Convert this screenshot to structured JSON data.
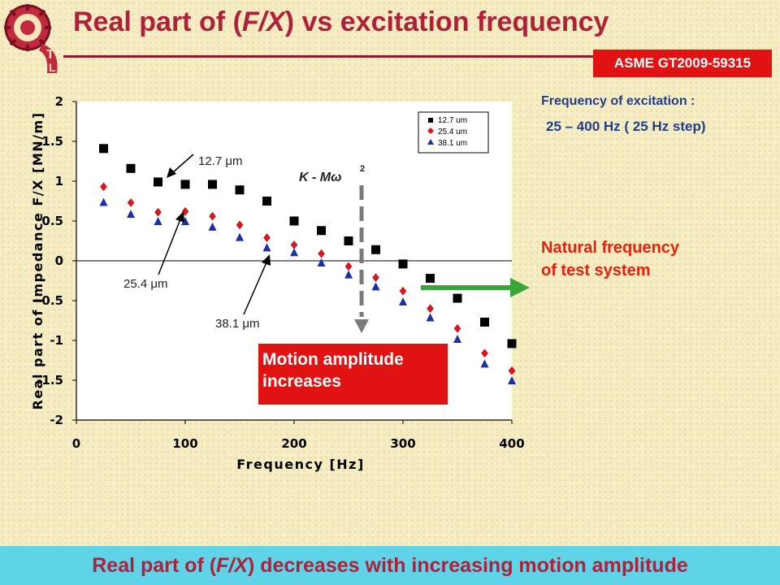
{
  "header": {
    "title_a": "Real part of (",
    "title_b": "F/X",
    "title_c": ") vs excitation frequency",
    "badge": "ASME GT2009-59315"
  },
  "side": {
    "freq_title": "Frequency of excitation :",
    "freq_range": "25 – 400 Hz ( 25 Hz step)",
    "natural_line1": "Natural frequency",
    "natural_line2": "of test system",
    "motion_line1": "Motion amplitude",
    "motion_line2": "increases"
  },
  "annotations": {
    "a127": "12.7 μm",
    "a254": "25.4 μm",
    "a381": "38.1 μm",
    "k_main": "K - Mω",
    "k_sup": "2"
  },
  "footer": {
    "a": "Real part of (",
    "b": "F/X",
    "c": ") decreases with increasing motion amplitude"
  },
  "colors": {
    "title": "#b0203a",
    "badge": "#e01212",
    "blue_text": "#1f3e8c",
    "footer_bg": "#5fd4e8",
    "series_black": "#000000",
    "series_red": "#e8101a",
    "series_blue": "#1a2ea8",
    "arrow_green": "#3aa63a",
    "dashed_line": "#7a7a7a"
  },
  "chart_data": {
    "type": "scatter",
    "xlabel": "Frequency [Hz]",
    "ylabel": "Real part of Impedance F/X [MN/m]",
    "xlim": [
      0,
      400
    ],
    "ylim": [
      -2,
      2
    ],
    "xticks": [
      0,
      100,
      200,
      300,
      400
    ],
    "yticks": [
      -2,
      -1.5,
      -1,
      -0.5,
      0,
      0.5,
      1,
      1.5,
      2
    ],
    "legend_position": "top-right",
    "x": [
      25,
      50,
      75,
      100,
      125,
      150,
      175,
      200,
      225,
      250,
      275,
      300,
      325,
      350,
      375,
      400
    ],
    "series": [
      {
        "name": "12.7 um",
        "marker": "square",
        "values": [
          1.41,
          1.16,
          0.99,
          0.96,
          0.96,
          0.89,
          0.75,
          0.5,
          0.38,
          0.25,
          0.14,
          -0.04,
          -0.22,
          -0.47,
          -0.77,
          -1.04
        ]
      },
      {
        "name": "25.4 um",
        "marker": "diamond",
        "values": [
          0.93,
          0.73,
          0.61,
          0.62,
          0.56,
          0.45,
          0.29,
          0.2,
          0.09,
          -0.07,
          -0.21,
          -0.38,
          -0.6,
          -0.85,
          -1.16,
          -1.38
        ]
      },
      {
        "name": "38.1 um",
        "marker": "triangle",
        "values": [
          0.73,
          0.58,
          0.49,
          0.49,
          0.42,
          0.29,
          0.16,
          0.1,
          -0.03,
          -0.18,
          -0.33,
          -0.52,
          -0.72,
          -0.99,
          -1.3,
          -1.51
        ]
      }
    ]
  }
}
